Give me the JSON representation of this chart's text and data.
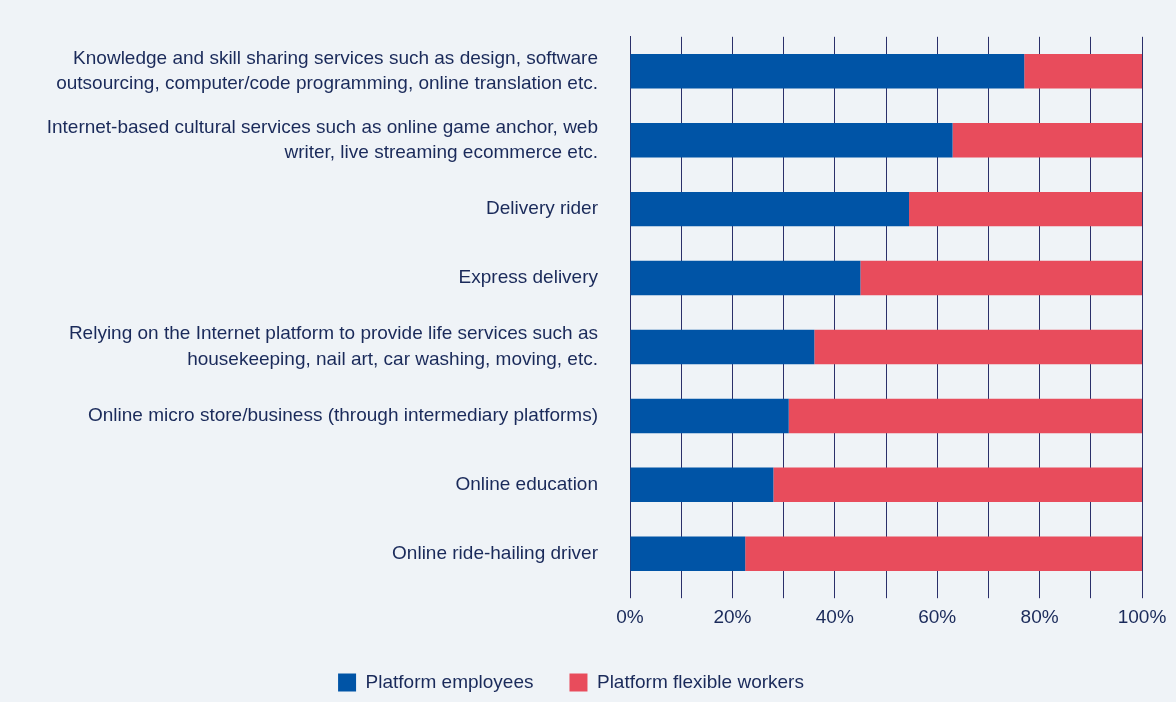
{
  "chart_data": {
    "type": "bar",
    "orientation": "horizontal",
    "stacked": true,
    "categories": [
      "Knowledge and skill sharing services such as design, software outsourcing, computer/code programming, online translation etc.",
      "Internet-based cultural services such as online game anchor, web writer, live streaming ecommerce etc.",
      "Delivery rider",
      "Express delivery",
      "Relying on the Internet platform to provide life services such as housekeeping, nail art, car washing, moving, etc.",
      "Online micro store/business (through intermediary platforms)",
      "Online education",
      "Online ride-hailing driver"
    ],
    "series": [
      {
        "name": "Platform employees",
        "color": "#0054a6",
        "values": [
          77,
          63,
          54.5,
          45,
          36,
          31,
          28,
          22.5
        ]
      },
      {
        "name": "Platform flexible workers",
        "color": "#e84c5c",
        "values": [
          23,
          37,
          45.5,
          55,
          64,
          69,
          72,
          77.5
        ]
      }
    ],
    "xlim": [
      0,
      100
    ],
    "xticks": [
      {
        "value": 0,
        "label": "0%"
      },
      {
        "value": 10,
        "label": null
      },
      {
        "value": 20,
        "label": "20%"
      },
      {
        "value": 30,
        "label": null
      },
      {
        "value": 40,
        "label": "40%"
      },
      {
        "value": 50,
        "label": null
      },
      {
        "value": 60,
        "label": "60%"
      },
      {
        "value": 70,
        "label": null
      },
      {
        "value": 80,
        "label": "80%"
      },
      {
        "value": 90,
        "label": null
      },
      {
        "value": 100,
        "label": "100%"
      }
    ],
    "grid": "x",
    "legend": "bottom"
  }
}
